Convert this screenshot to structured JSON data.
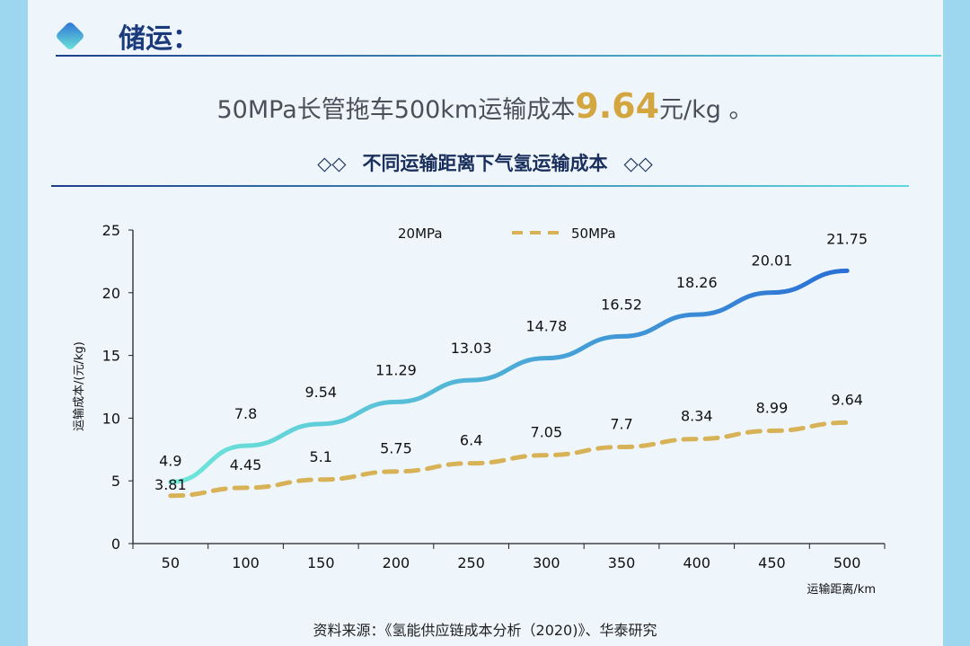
{
  "section_title": "储运：",
  "headline": {
    "prefix": "50MPa长管拖车500km运输成本",
    "value": "9.64",
    "suffix": "元/kg 。"
  },
  "subtitle": {
    "text": "不同运输距离下气氢运输成本",
    "icon": "double-diamond-icon"
  },
  "source": "资料来源：《氢能供应链成本分析（2020)》、华泰研究",
  "chart_data": {
    "type": "line",
    "title": "不同运输距离下气氢运输成本",
    "xlabel": "运输距离/km",
    "ylabel": "运输成本/(元/kg)",
    "categories": [
      "50",
      "100",
      "150",
      "200",
      "250",
      "300",
      "350",
      "400",
      "450",
      "500"
    ],
    "ylim": [
      0,
      25
    ],
    "yticks": [
      "0",
      "5",
      "10",
      "15",
      "20",
      "25"
    ],
    "grid": false,
    "legend": "top",
    "series": [
      {
        "name": "20MPa",
        "values": [
          4.9,
          7.8,
          9.54,
          11.29,
          13.03,
          14.78,
          16.52,
          18.26,
          20.01,
          21.75
        ],
        "labels": [
          "4.9",
          "7.8",
          "9.54",
          "11.29",
          "13.03",
          "14.78",
          "16.52",
          "18.26",
          "20.01",
          "21.75"
        ],
        "color": "#2a6fd6",
        "color_start": "#6fe8d8",
        "style": "solid"
      },
      {
        "name": "50MPa",
        "values": [
          3.81,
          4.45,
          5.1,
          5.75,
          6.4,
          7.05,
          7.7,
          8.34,
          8.99,
          9.64
        ],
        "labels": [
          "3.81",
          "4.45",
          "5.1",
          "5.75",
          "6.4",
          "7.05",
          "7.7",
          "8.34",
          "8.99",
          "9.64"
        ],
        "color": "#d8b257",
        "style": "dashed"
      }
    ]
  }
}
